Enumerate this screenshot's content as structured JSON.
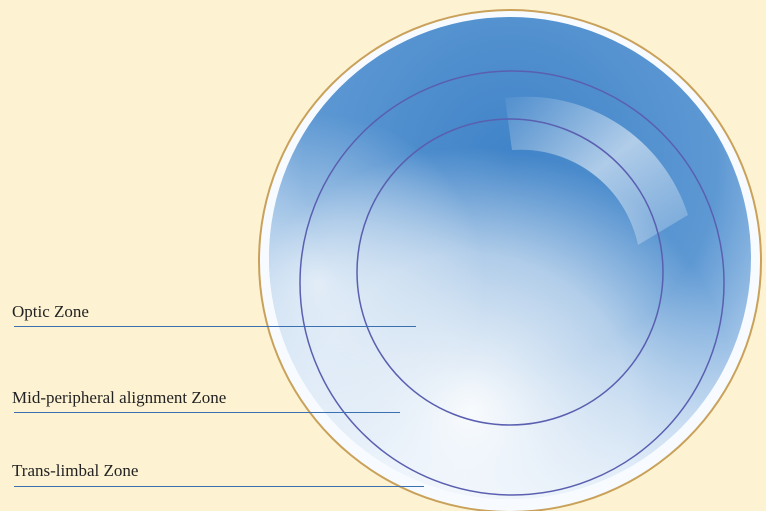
{
  "diagram": {
    "labels": [
      {
        "id": "optic",
        "text": "Optic Zone"
      },
      {
        "id": "mid",
        "text": "Mid-peripheral alignment Zone"
      },
      {
        "id": "trans",
        "text": "Trans-limbal Zone"
      }
    ]
  },
  "colors": {
    "background": "#fdf3d3",
    "lens_blue": "#3f83c8",
    "ring": "#5a5fb0",
    "leader_line": "#3a6fb0"
  }
}
